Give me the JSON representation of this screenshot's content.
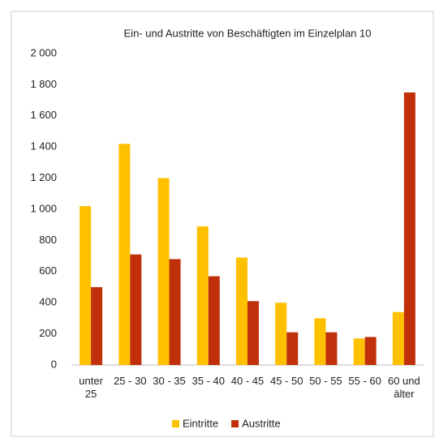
{
  "chart_data": {
    "type": "bar",
    "title": "Ein- und Austritte von Beschäftigten im Einzelplan 10",
    "categories": [
      "unter 25",
      "25 - 30",
      "30 - 35",
      "35 - 40",
      "40 - 45",
      "45 - 50",
      "50 - 55",
      "55 - 60",
      "60 und älter"
    ],
    "series": [
      {
        "name": "Eintritte",
        "color": "#FFC000",
        "values": [
          1020,
          1420,
          1200,
          890,
          690,
          400,
          300,
          170,
          340
        ]
      },
      {
        "name": "Austritte",
        "color": "#C0300A",
        "values": [
          500,
          710,
          680,
          570,
          410,
          210,
          210,
          180,
          1750
        ]
      }
    ],
    "ylim": [
      0,
      2000
    ],
    "yticks": [
      0,
      200,
      400,
      600,
      800,
      {
        "value": 1000,
        "label": "1 000"
      },
      {
        "value": 1200,
        "label": "1 200"
      },
      {
        "value": 1400,
        "label": "1 400"
      },
      {
        "value": 1600,
        "label": "1 600"
      },
      {
        "value": 1800,
        "label": "1 800"
      },
      {
        "value": 2000,
        "label": "2 000"
      }
    ],
    "grid": false,
    "legend": "bottom"
  }
}
